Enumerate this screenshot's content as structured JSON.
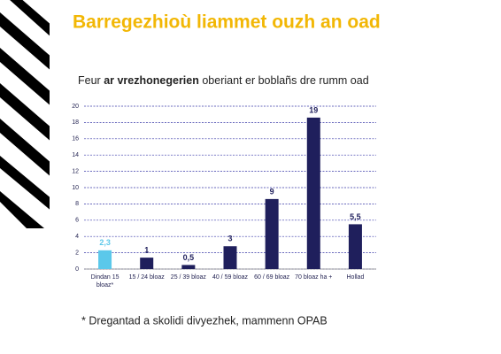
{
  "title": "Barregezhioù liammet ouzh an oad",
  "footnote": "* Dregantad a skolidi divyezhek, mammenn OPAB",
  "chart_data": {
    "type": "bar",
    "subtitle_parts": [
      "Feur",
      "ar vrezhonegerien",
      "oberiant er boblañs dre rumm oad"
    ],
    "categories": [
      "Dindan 15\nbloaz*",
      "15 / 24  bloaz",
      "25 / 39 bloaz",
      "40 / 59 bloaz",
      "60 / 69 bloaz",
      "70 bloaz ha +",
      "Hollad"
    ],
    "values": [
      2.3,
      1.4,
      0.5,
      2.8,
      8.6,
      18.6,
      5.5
    ],
    "value_labels": [
      "2,3",
      "1",
      "0,5",
      "3",
      "9",
      "19",
      "5,5"
    ],
    "colors": [
      "#5bc8ea",
      "#1f1f5c",
      "#1f1f5c",
      "#1f1f5c",
      "#1f1f5c",
      "#1f1f5c",
      "#1f1f5c"
    ],
    "ylim": [
      0,
      20
    ],
    "yticks": [
      0,
      2,
      4,
      6,
      8,
      10,
      12,
      14,
      16,
      18,
      20
    ],
    "grid": true
  }
}
